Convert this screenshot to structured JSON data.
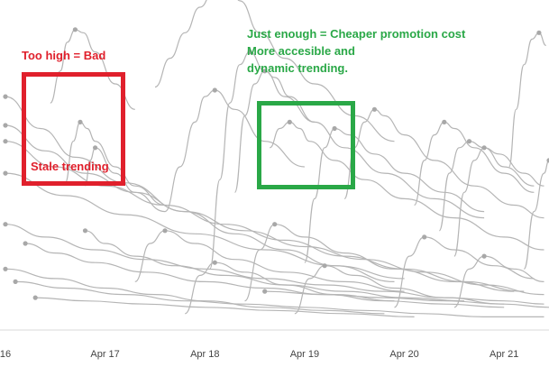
{
  "annotations": {
    "red_title": "Too high = Bad",
    "red_inner": "Stale trending",
    "green_line1": "Just enough = Cheaper  promotion cost",
    "green_line2": "More accesible and",
    "green_line3": "dynamic trending."
  },
  "colors": {
    "red": "#e0202c",
    "green": "#2aa847",
    "series": "#b5b5b5",
    "marker": "#a8a8a8",
    "axis_text": "#444444"
  },
  "chart_data": {
    "type": "line",
    "title": "",
    "xlabel": "",
    "ylabel": "",
    "x_ticks": [
      "16",
      "Apr 17",
      "Apr 18",
      "Apr 19",
      "Apr 20",
      "Apr 21"
    ],
    "x_unit": "days since Apr 16",
    "xlim": [
      0.0,
      5.45
    ],
    "ylim": [
      0,
      100
    ],
    "series": [
      {
        "x": [
          0.0,
          0.35,
          0.7,
          1.2,
          1.8,
          2.3,
          2.8,
          3.3,
          3.9
        ],
        "y": [
          72,
          62,
          53,
          45,
          36,
          29,
          24,
          19,
          14
        ]
      },
      {
        "x": [
          0.0,
          0.4,
          0.8,
          1.3,
          1.8,
          2.4,
          3.0,
          3.6,
          4.2,
          4.8,
          5.4
        ],
        "y": [
          63,
          55,
          48,
          42,
          36,
          30,
          25,
          21,
          17,
          13,
          10
        ]
      },
      {
        "x": [
          0.0,
          0.5,
          1.0,
          1.6,
          2.2,
          2.8,
          3.4,
          4.0,
          4.6,
          5.2
        ],
        "y": [
          58,
          50,
          44,
          38,
          32,
          27,
          22,
          18,
          14,
          11
        ]
      },
      {
        "x": [
          0.0,
          0.6,
          1.2,
          1.9,
          2.6,
          3.3,
          4.0
        ],
        "y": [
          48,
          41,
          35,
          29,
          24,
          19,
          15
        ]
      },
      {
        "x": [
          0.45,
          0.55,
          0.62,
          0.7,
          0.78,
          0.9,
          1.1,
          1.3
        ],
        "y": [
          70,
          80,
          89,
          93,
          92,
          86,
          76,
          68
        ]
      },
      {
        "x": [
          0.6,
          0.68,
          0.75,
          0.82,
          0.9,
          1.1,
          1.3,
          1.6
        ],
        "y": [
          45,
          58,
          64,
          62,
          58,
          50,
          44,
          38
        ]
      },
      {
        "x": [
          0.8,
          0.85,
          0.9,
          1.1,
          1.3,
          1.6
        ],
        "y": [
          44,
          52,
          56,
          48,
          42,
          36
        ]
      },
      {
        "x": [
          1.5,
          1.65,
          1.8,
          1.95,
          2.1,
          2.25,
          2.35,
          2.55,
          2.8,
          3.1,
          3.5,
          3.9
        ],
        "y": [
          75,
          84,
          92,
          100,
          106,
          108,
          102,
          92,
          84,
          76,
          66,
          58
        ]
      },
      {
        "x": [
          1.6,
          1.75,
          1.9,
          2.0,
          2.1,
          2.3,
          2.6,
          3.0
        ],
        "y": [
          36,
          50,
          64,
          72,
          74,
          68,
          58,
          50
        ]
      },
      {
        "x": [
          2.05,
          2.15,
          2.25,
          2.35,
          2.45,
          2.6,
          2.8,
          3.1
        ],
        "y": [
          18,
          46,
          70,
          82,
          86,
          80,
          72,
          64
        ]
      },
      {
        "x": [
          2.3,
          2.4,
          2.5,
          2.6,
          2.7,
          2.85,
          3.1,
          3.4,
          3.8,
          4.3,
          4.8
        ],
        "y": [
          42,
          66,
          76,
          80,
          78,
          72,
          64,
          56,
          48,
          40,
          34
        ]
      },
      {
        "x": [
          2.65,
          2.75,
          2.85,
          2.95,
          3.05,
          3.3,
          3.6,
          4.0,
          4.5,
          5.0,
          5.4
        ],
        "y": [
          56,
          62,
          64,
          62,
          58,
          52,
          46,
          40,
          34,
          28,
          24
        ]
      },
      {
        "x": [
          3.0,
          3.1,
          3.2,
          3.3,
          3.45,
          3.7,
          4.0,
          4.4,
          4.8
        ],
        "y": [
          20,
          40,
          56,
          62,
          60,
          54,
          48,
          42,
          36
        ]
      },
      {
        "x": [
          3.4,
          3.5,
          3.6,
          3.7,
          3.8,
          4.0,
          4.3,
          4.7,
          5.1,
          5.4
        ],
        "y": [
          40,
          56,
          64,
          68,
          66,
          60,
          52,
          44,
          38,
          34
        ]
      },
      {
        "x": [
          4.1,
          4.2,
          4.3,
          4.4,
          4.5,
          4.7,
          5.0,
          5.3
        ],
        "y": [
          38,
          52,
          60,
          64,
          62,
          56,
          48,
          42
        ]
      },
      {
        "x": [
          4.35,
          4.45,
          4.55,
          4.65,
          4.8,
          5.0,
          5.3
        ],
        "y": [
          30,
          48,
          56,
          58,
          56,
          50,
          44
        ]
      },
      {
        "x": [
          4.5,
          4.6,
          4.7,
          4.8,
          4.95,
          5.2,
          5.4
        ],
        "y": [
          22,
          42,
          52,
          56,
          54,
          48,
          44
        ]
      },
      {
        "x": [
          5.05,
          5.12,
          5.2,
          5.28,
          5.35,
          5.42
        ],
        "y": [
          50,
          68,
          82,
          90,
          92,
          88
        ]
      },
      {
        "x": [
          5.2,
          5.3,
          5.4,
          5.45
        ],
        "y": [
          18,
          36,
          48,
          52
        ]
      },
      {
        "x": [
          0.0,
          0.4,
          0.9,
          1.4,
          2.0,
          2.6,
          3.2,
          3.8,
          4.4,
          5.0,
          5.4
        ],
        "y": [
          32,
          28,
          24,
          21,
          18,
          15,
          13,
          11,
          9,
          8,
          7
        ]
      },
      {
        "x": [
          0.2,
          0.5,
          0.9,
          1.4,
          2.0,
          2.6,
          3.2,
          3.8,
          4.4,
          5.0
        ],
        "y": [
          26,
          23,
          20,
          17,
          14,
          12,
          10,
          8,
          7,
          6
        ]
      },
      {
        "x": [
          0.8,
          1.0,
          1.3,
          1.7,
          2.2,
          2.8,
          3.4,
          4.0,
          4.6
        ],
        "y": [
          30,
          26,
          22,
          19,
          16,
          13,
          11,
          9,
          8
        ]
      },
      {
        "x": [
          1.3,
          1.45,
          1.6,
          1.9,
          2.3,
          2.8,
          3.4,
          4.0
        ],
        "y": [
          14,
          26,
          30,
          26,
          21,
          17,
          14,
          11
        ]
      },
      {
        "x": [
          2.4,
          2.55,
          2.7,
          3.0,
          3.4,
          3.9,
          4.5,
          5.1
        ],
        "y": [
          8,
          24,
          32,
          28,
          23,
          18,
          14,
          11
        ]
      },
      {
        "x": [
          3.9,
          4.05,
          4.2,
          4.5,
          4.9,
          5.3
        ],
        "y": [
          6,
          22,
          28,
          24,
          19,
          15
        ]
      },
      {
        "x": [
          0.0,
          0.5,
          1.0,
          1.5,
          2.0,
          2.6,
          3.2,
          3.8
        ],
        "y": [
          18,
          15,
          12,
          10,
          8,
          6,
          5,
          4
        ]
      },
      {
        "x": [
          0.1,
          0.6,
          1.2,
          1.8,
          2.4,
          3.0,
          3.6,
          4.2,
          4.8,
          5.4
        ],
        "y": [
          14,
          12,
          10,
          8,
          7,
          6,
          5,
          4,
          3,
          3
        ]
      },
      {
        "x": [
          1.8,
          1.95,
          2.1,
          2.4,
          2.8,
          3.3,
          3.9
        ],
        "y": [
          4,
          16,
          20,
          17,
          13,
          10,
          8
        ]
      },
      {
        "x": [
          2.9,
          3.05,
          3.2,
          3.5,
          3.9,
          4.4,
          5.0
        ],
        "y": [
          4,
          15,
          19,
          16,
          12,
          9,
          7
        ]
      },
      {
        "x": [
          4.5,
          4.65,
          4.8,
          5.1,
          5.4
        ],
        "y": [
          6,
          18,
          22,
          18,
          14
        ]
      },
      {
        "x": [
          0.3,
          0.8,
          1.4,
          2.0,
          2.7,
          3.4,
          4.1
        ],
        "y": [
          9,
          8,
          7,
          6,
          5,
          4,
          3
        ]
      },
      {
        "x": [
          2.6,
          3.2,
          3.8,
          4.4,
          5.0,
          5.45
        ],
        "y": [
          11,
          10,
          9,
          8,
          7,
          6
        ]
      }
    ]
  }
}
